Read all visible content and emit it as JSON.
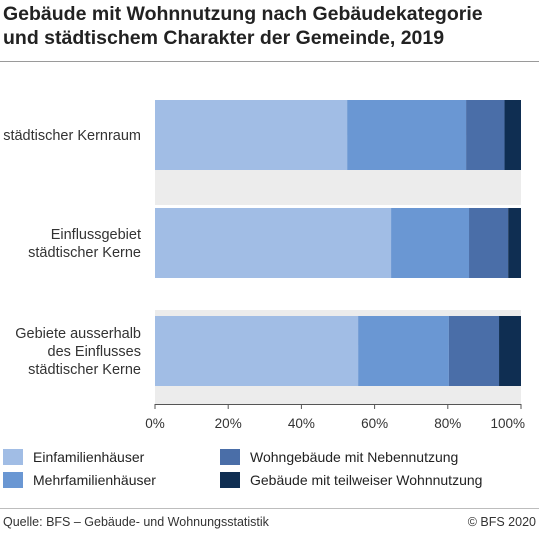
{
  "title_lines": [
    "Gebäude mit Wohnnutzung nach Gebäudekategorie",
    "und städtischem Charakter der Gemeinde, 2019"
  ],
  "footer": {
    "source": "Quelle: BFS – Gebäude- und Wohnungsstatistik",
    "copyright": "© BFS 2020"
  },
  "chart_data": {
    "type": "bar",
    "orientation": "horizontal",
    "stacked": true,
    "categories": [
      [
        "städtischer Kernraum"
      ],
      [
        "Einflussgebiet",
        "städtischer Kerne"
      ],
      [
        "Gebiete ausserhalb",
        "des Einflusses",
        "städtischer Kerne"
      ]
    ],
    "series": [
      {
        "name": "Einfamilienhäuser",
        "color": "#a1bde5",
        "values": [
          52.5,
          64.5,
          55.5
        ]
      },
      {
        "name": "Mehrfamilienhäuser",
        "color": "#6a97d3",
        "values": [
          32.5,
          21.3,
          24.8
        ]
      },
      {
        "name": "Wohngebäude mit Nebennutzung",
        "color": "#4a6ea8",
        "values": [
          10.5,
          10.7,
          13.7
        ]
      },
      {
        "name": "Gebäude mit teilweiser Wohnnutzung",
        "color": "#0f2e52",
        "values": [
          4.5,
          3.5,
          6.0
        ]
      }
    ],
    "xlim": [
      0,
      100
    ],
    "x_ticks": [
      "0%",
      "20%",
      "40%",
      "60%",
      "80%",
      "100%"
    ],
    "x_tick_values": [
      0,
      20,
      40,
      60,
      80,
      100
    ],
    "band_colors": [
      "#ececec",
      "#ffffff"
    ],
    "legend_position": "bottom"
  }
}
